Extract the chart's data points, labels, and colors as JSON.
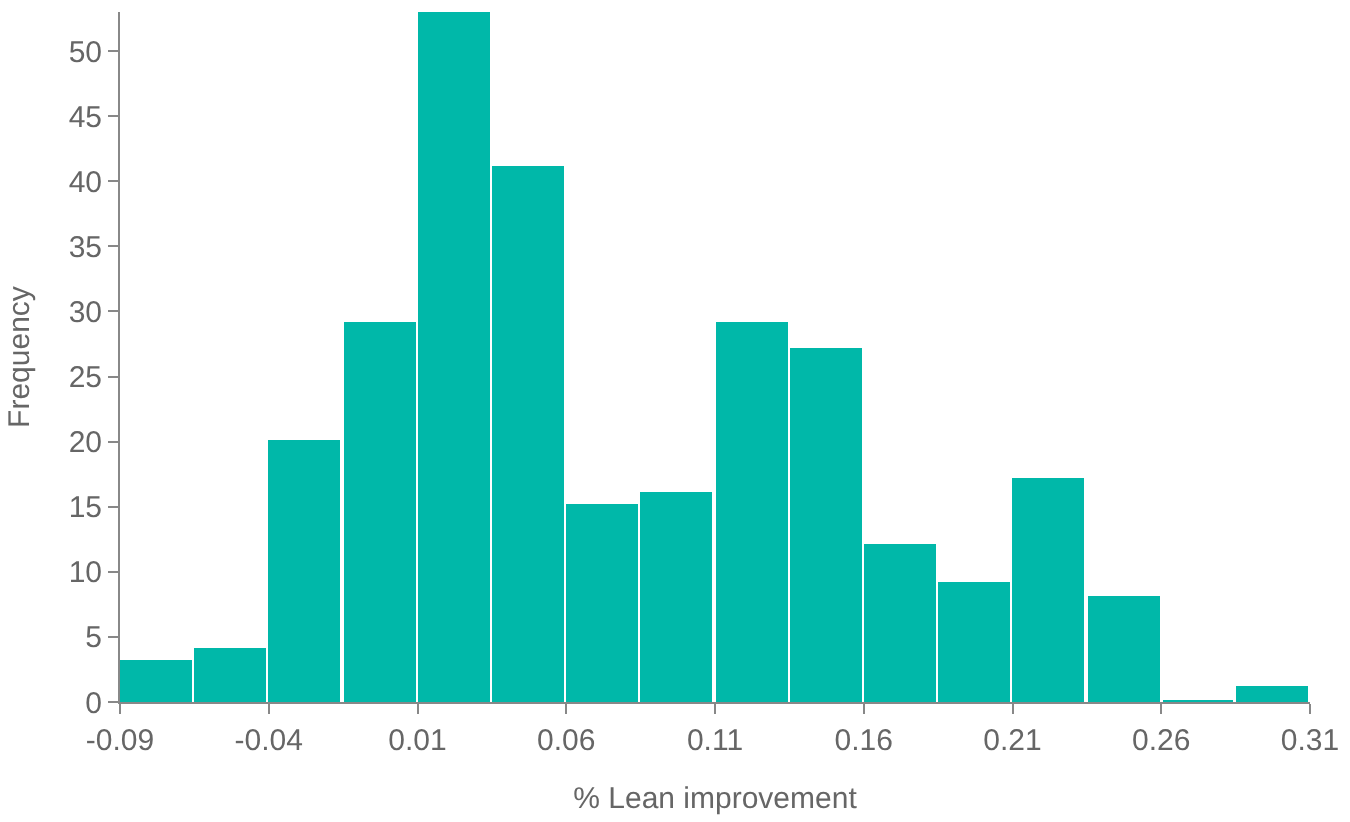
{
  "chart_data": {
    "type": "histogram",
    "xlabel": "% Lean improvement",
    "ylabel": "Frequency",
    "bins": [
      -0.09,
      -0.065,
      -0.04,
      -0.015,
      0.01,
      0.035,
      0.06,
      0.085,
      0.11,
      0.135,
      0.16,
      0.185,
      0.21,
      0.235,
      0.26,
      0.285,
      0.31
    ],
    "values": [
      3,
      4,
      20,
      29,
      53,
      41,
      15,
      16,
      29,
      27,
      12,
      9,
      17,
      8,
      0,
      1
    ],
    "color": "#00b8a9",
    "xlim": [
      -0.09,
      0.31
    ],
    "xticks": [
      -0.09,
      -0.04,
      0.01,
      0.06,
      0.11,
      0.16,
      0.21,
      0.26,
      0.31
    ],
    "ylim": [
      0,
      53
    ],
    "yticks": [
      0,
      5,
      10,
      15,
      20,
      25,
      30,
      35,
      40,
      45,
      50
    ]
  }
}
